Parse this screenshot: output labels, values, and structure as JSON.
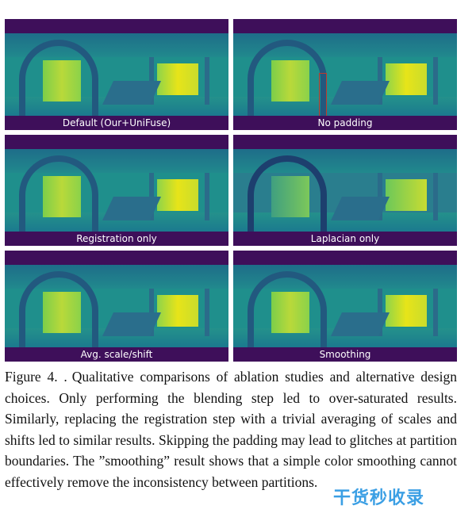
{
  "panels": [
    {
      "caption": "Default (Our+UniFuse)"
    },
    {
      "caption": "No padding"
    },
    {
      "caption": "Registration only"
    },
    {
      "caption": "Laplacian only"
    },
    {
      "caption": "Avg. scale/shift"
    },
    {
      "caption": "Smoothing"
    }
  ],
  "figure": {
    "label": "Figure 4. .",
    "caption": "Qualitative comparisons of ablation studies and alternative design choices. Only performing the blending step led to over-saturated results. Similarly, replacing the registration step with a trivial averaging of scales and shifts led to similar results. Skipping the padding may lead to glitches at partition boundaries. The ”smoothing” result shows that a simple color smoothing cannot effectively remove the inconsistency between partitions."
  },
  "watermark": {
    "text": "干货秒收录"
  },
  "colors": {
    "panel_border": "#3e0f5a",
    "marker": "#c0392b",
    "watermark": "#1a8fe0"
  }
}
